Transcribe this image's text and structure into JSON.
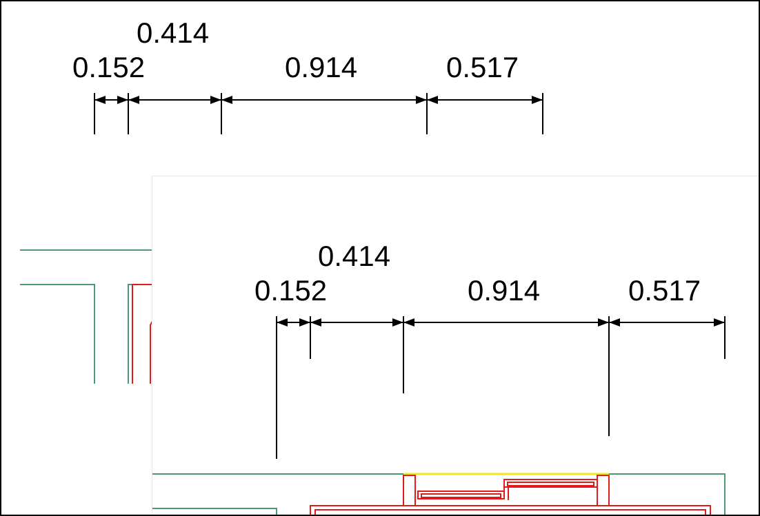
{
  "dimensions": {
    "top_view": {
      "labels": [
        "0.152",
        "0.414",
        "0.914",
        "0.517"
      ]
    },
    "zoom_view": {
      "labels": [
        "0.152",
        "0.414",
        "0.914",
        "0.517"
      ]
    }
  },
  "colors": {
    "wall": "#4a9a72",
    "detail": "#e41a1a",
    "highlight": "#f4e61a",
    "dimension": "#000000"
  }
}
